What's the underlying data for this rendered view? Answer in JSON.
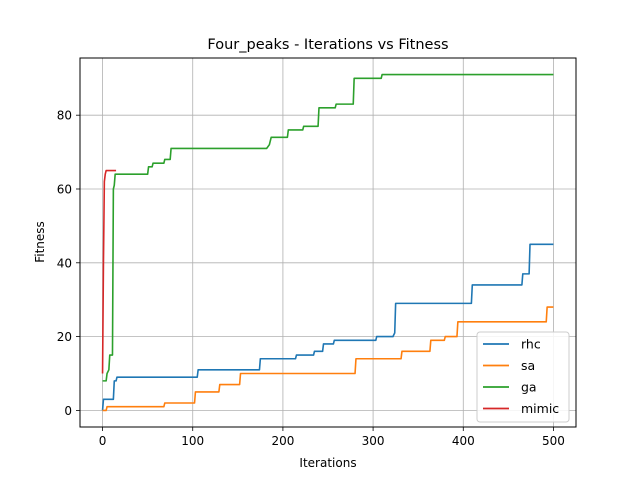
{
  "chart_data": {
    "type": "line",
    "title": "Four_peaks - Iterations vs Fitness",
    "xlabel": "Iterations",
    "ylabel": "Fitness",
    "xlim": [
      -25,
      525
    ],
    "ylim": [
      -4.5,
      95.5
    ],
    "xticks": [
      0,
      100,
      200,
      300,
      400,
      500
    ],
    "yticks": [
      0,
      20,
      40,
      60,
      80
    ],
    "grid": true,
    "legend_position": "lower-right",
    "series": [
      {
        "name": "rhc",
        "color": "#1f77b4",
        "points": [
          [
            0,
            0
          ],
          [
            1,
            3
          ],
          [
            12,
            3
          ],
          [
            13,
            8
          ],
          [
            15,
            8
          ],
          [
            16,
            9
          ],
          [
            105,
            9
          ],
          [
            106,
            11
          ],
          [
            174,
            11
          ],
          [
            175,
            14
          ],
          [
            214,
            14
          ],
          [
            215,
            15
          ],
          [
            234,
            15
          ],
          [
            235,
            16
          ],
          [
            244,
            16
          ],
          [
            245,
            18
          ],
          [
            256,
            18
          ],
          [
            257,
            19
          ],
          [
            303,
            19
          ],
          [
            304,
            20
          ],
          [
            322,
            20
          ],
          [
            324,
            21
          ],
          [
            325,
            29
          ],
          [
            409,
            29
          ],
          [
            410,
            34
          ],
          [
            465,
            34
          ],
          [
            466,
            37
          ],
          [
            473,
            37
          ],
          [
            474,
            45
          ],
          [
            500,
            45
          ]
        ]
      },
      {
        "name": "sa",
        "color": "#ff7f0e",
        "points": [
          [
            0,
            0
          ],
          [
            4,
            0
          ],
          [
            5,
            1
          ],
          [
            68,
            1
          ],
          [
            69,
            2
          ],
          [
            102,
            2
          ],
          [
            103,
            5
          ],
          [
            129,
            5
          ],
          [
            130,
            7
          ],
          [
            152,
            7
          ],
          [
            153,
            10
          ],
          [
            280,
            10
          ],
          [
            281,
            14
          ],
          [
            331,
            14
          ],
          [
            332,
            16
          ],
          [
            363,
            16
          ],
          [
            364,
            19
          ],
          [
            379,
            19
          ],
          [
            380,
            20
          ],
          [
            393,
            20
          ],
          [
            394,
            24
          ],
          [
            492,
            24
          ],
          [
            493,
            28
          ],
          [
            500,
            28
          ]
        ]
      },
      {
        "name": "ga",
        "color": "#2ca02c",
        "points": [
          [
            0,
            8
          ],
          [
            4,
            8
          ],
          [
            5,
            10
          ],
          [
            7,
            11
          ],
          [
            8,
            15
          ],
          [
            11,
            15
          ],
          [
            12,
            60
          ],
          [
            13,
            61
          ],
          [
            14,
            64
          ],
          [
            50,
            64
          ],
          [
            51,
            66
          ],
          [
            55,
            66
          ],
          [
            56,
            67
          ],
          [
            68,
            67
          ],
          [
            69,
            68
          ],
          [
            75,
            68
          ],
          [
            76,
            71
          ],
          [
            182,
            71
          ],
          [
            185,
            72
          ],
          [
            187,
            74
          ],
          [
            205,
            74
          ],
          [
            206,
            76
          ],
          [
            222,
            76
          ],
          [
            223,
            77
          ],
          [
            239,
            77
          ],
          [
            240,
            82
          ],
          [
            258,
            82
          ],
          [
            259,
            83
          ],
          [
            278,
            83
          ],
          [
            279,
            90
          ],
          [
            309,
            90
          ],
          [
            310,
            91
          ],
          [
            500,
            91
          ]
        ]
      },
      {
        "name": "mimic",
        "color": "#d62728",
        "points": [
          [
            0,
            10
          ],
          [
            1,
            40
          ],
          [
            2,
            62
          ],
          [
            3,
            64
          ],
          [
            4,
            65
          ],
          [
            15,
            65
          ]
        ]
      }
    ]
  }
}
